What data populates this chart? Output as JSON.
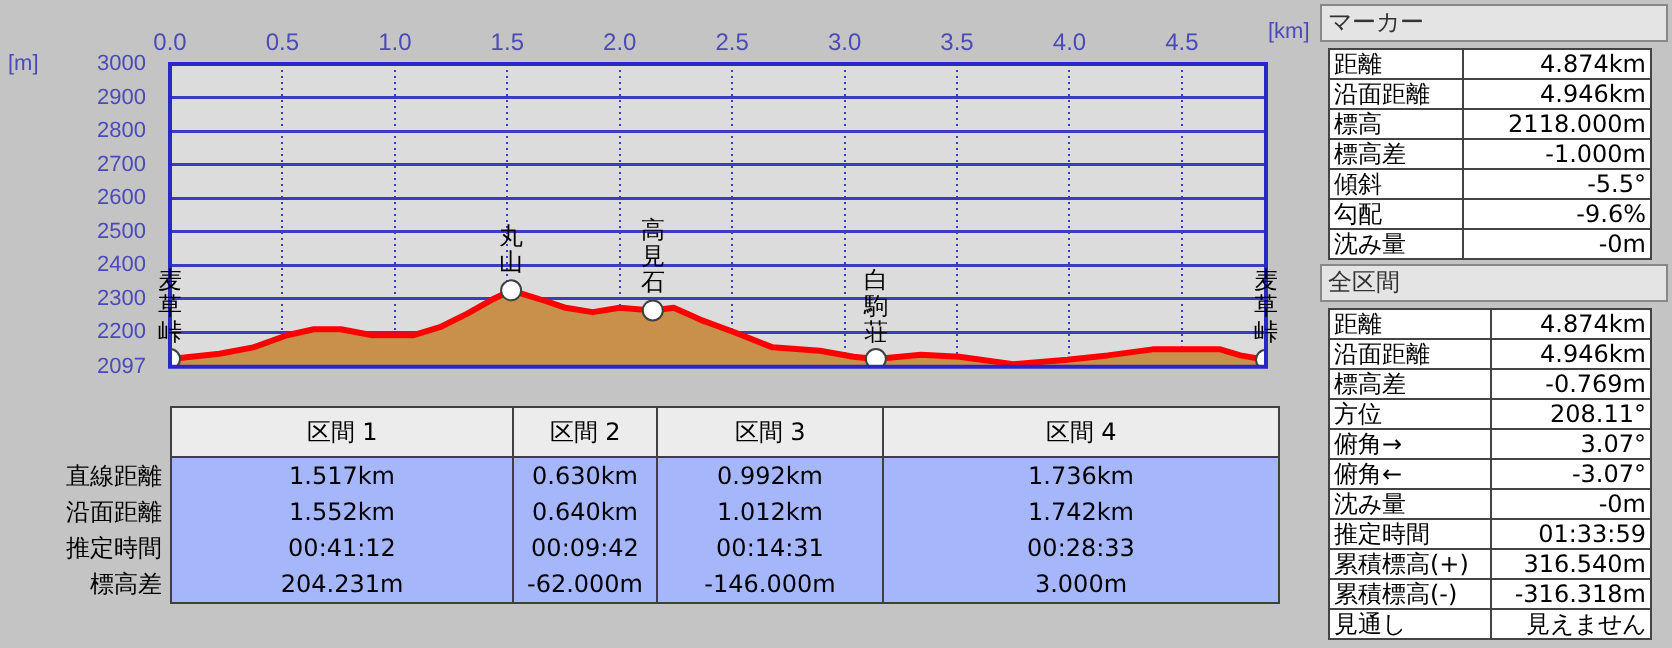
{
  "chart_data": [
    {
      "type": "area",
      "xlabel": "[km]",
      "ylabel": "[m]",
      "xlim": [
        0,
        4.874
      ],
      "xticks": [
        {
          "value": 0,
          "label": "0.0"
        },
        0.5,
        {
          "value": 1,
          "label": "1.0"
        },
        1.5,
        {
          "value": 2,
          "label": "2.0"
        },
        2.5,
        {
          "value": 3,
          "label": "3.0"
        },
        3.5,
        {
          "value": 4,
          "label": "4.0"
        },
        4.5
      ],
      "ylim": [
        2097,
        3000
      ],
      "yticks": [
        2097,
        2200,
        2300,
        2400,
        2500,
        2600,
        2700,
        2800,
        2900,
        3000
      ],
      "grid": true,
      "x": [
        0,
        0.22,
        0.37,
        0.52,
        0.64,
        0.76,
        0.9,
        1.08,
        1.2,
        1.32,
        1.44,
        1.517,
        1.68,
        1.76,
        1.88,
        2.0,
        2.147,
        2.24,
        2.36,
        2.51,
        2.68,
        2.89,
        3.04,
        3.139,
        3.34,
        3.51,
        3.75,
        3.99,
        4.17,
        4.37,
        4.67,
        4.76,
        4.874
      ],
      "series": [
        {
          "type": "area",
          "color": "#ff0000",
          "values": [
            2120,
            2136,
            2155,
            2191,
            2209,
            2209,
            2191,
            2191,
            2215,
            2255,
            2300,
            2325,
            2291,
            2273,
            2260,
            2273,
            2265,
            2273,
            2237,
            2200,
            2155,
            2145,
            2127,
            2120,
            2133,
            2127,
            2105,
            2118,
            2131,
            2149,
            2149,
            2131,
            2118
          ]
        },
        {
          "type": "scatter",
          "color": "#ffffff",
          "marker": "circle",
          "x": [
            0,
            1.517,
            2.147,
            3.139,
            4.874
          ],
          "values": [
            2120,
            2325,
            2265,
            2120,
            2118
          ]
        }
      ],
      "annotations": [
        {
          "text": "麦草峠",
          "x": 0,
          "y": 2120
        },
        {
          "text": "丸山",
          "x": 1.517,
          "y": 2325
        },
        {
          "text": "高見石",
          "x": 2.147,
          "y": 2265
        },
        {
          "text": "白駒荘",
          "x": 3.139,
          "y": 2120
        },
        {
          "text": "麦草峠",
          "x": 4.874,
          "y": 2118
        }
      ]
    },
    {
      "type": "other",
      "categories": [
        "区間 1",
        "区間 2",
        "区間 3",
        "区間 4"
      ],
      "y_categories": [
        "直線距離",
        "沿面距離",
        "推定時間",
        "標高差"
      ],
      "cell_labels": [
        [
          "1.517km",
          "0.630km",
          "0.992km",
          "1.736km"
        ],
        [
          "1.552km",
          "0.640km",
          "1.012km",
          "1.742km"
        ],
        [
          "00:41:12",
          "00:09:42",
          "00:14:31",
          "00:28:33"
        ],
        [
          "204.231m",
          "-62.000m",
          "-146.000m",
          "3.000m"
        ]
      ]
    },
    {
      "type": "other",
      "title": "マーカー",
      "y_categories": [
        "距離",
        "沿面距離",
        "標高",
        "標高差",
        "傾斜",
        "勾配",
        "沈み量"
      ],
      "cell_labels": [
        [
          "4.874km"
        ],
        [
          "4.946km"
        ],
        [
          "2118.000m"
        ],
        [
          "-1.000m"
        ],
        [
          "-5.5°"
        ],
        [
          "-9.6%"
        ],
        [
          "-0m"
        ]
      ]
    },
    {
      "type": "other",
      "title": "全区間",
      "y_categories": [
        "距離",
        "沿面距離",
        "標高差",
        "方位",
        "俯角→",
        "俯角←",
        "沈み量",
        "推定時間",
        "累積標高(+)",
        "累積標高(-)",
        "見通し"
      ],
      "cell_labels": [
        [
          "4.874km"
        ],
        [
          "4.946km"
        ],
        [
          "-0.769m"
        ],
        [
          "208.11°"
        ],
        [
          "3.07°"
        ],
        [
          "-3.07°"
        ],
        [
          "-0m"
        ],
        [
          "01:33:59"
        ],
        [
          "316.540m"
        ],
        [
          "-316.318m"
        ],
        [
          "見えません"
        ]
      ]
    }
  ]
}
